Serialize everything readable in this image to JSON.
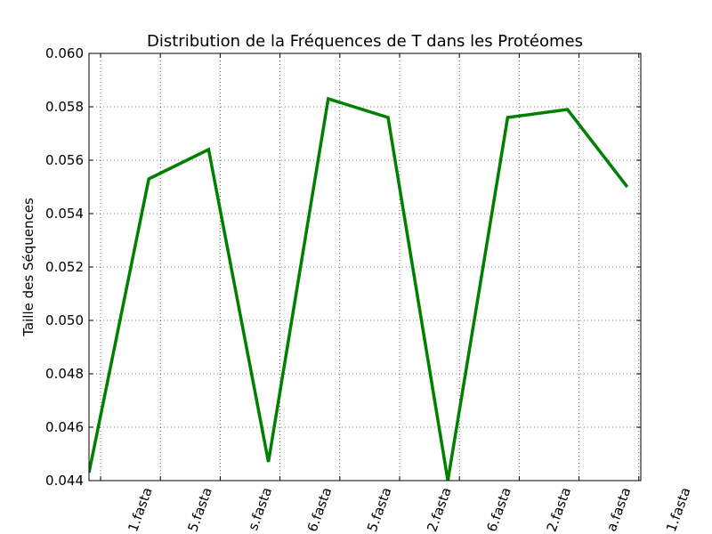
{
  "chart_data": {
    "type": "line",
    "title": "Distribution de la Fréquences de T dans les Protéomes",
    "xlabel": "",
    "ylabel": "Taille des Séquences",
    "ylim": [
      0.044,
      0.06
    ],
    "xlim": [
      0,
      9
    ],
    "grid": true,
    "yticks": [
      0.044,
      0.046,
      0.048,
      0.05,
      0.052,
      0.054,
      0.056,
      0.058,
      0.06
    ],
    "ytick_labels": [
      "0.044",
      "0.046",
      "0.048",
      "0.050",
      "0.052",
      "0.054",
      "0.056",
      "0.058",
      "0.060"
    ],
    "xtick_labels": [
      "1.fasta",
      "5.fasta",
      "s.fasta",
      "6.fasta",
      "5.fasta",
      "2.fasta",
      "6.fasta",
      "2.fasta",
      "a.fasta",
      "1.fasta"
    ],
    "series": [
      {
        "color": "#008000",
        "x": [
          0,
          1,
          2,
          3,
          4,
          5,
          6,
          7,
          8,
          9
        ],
        "values": [
          0.0443,
          0.0553,
          0.0564,
          0.0447,
          0.0583,
          0.0576,
          0.044,
          0.0576,
          0.0579,
          0.055
        ]
      }
    ]
  }
}
